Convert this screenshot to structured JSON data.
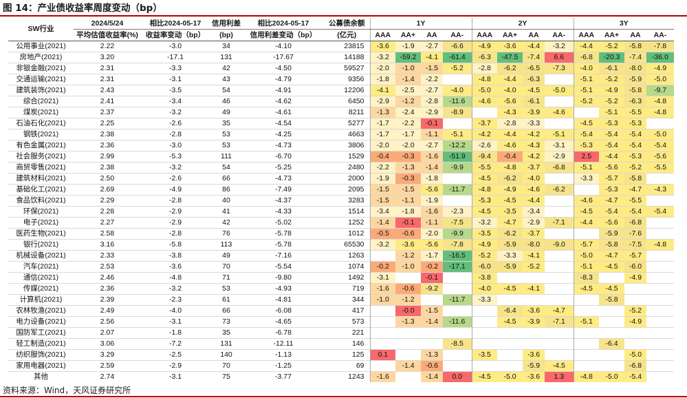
{
  "title": "图 14：产业债收益率周度变动（bp）",
  "source": "资料来源：Wind，天风证券研究所",
  "colors": {
    "red": "#f8696b",
    "orange": "#fbaa77",
    "yellow": "#ffeb84",
    "pale": "#fff2c4",
    "green": "#63be7b",
    "lightgreen": "#b6d98a"
  },
  "header": {
    "col_industry": "SW行业",
    "col_date_top": "2024/5/24",
    "col_date_bottom": "平均估值收益率(%)",
    "col_chg_top": "相比2024-05-17",
    "col_chg_bottom": "收益率变动（bp）",
    "col_spread_top": "信用利差",
    "col_spread_bottom": "(bp)",
    "col_spreadchg_top": "相比2024-05-17",
    "col_spreadchg_bottom": "信用利差变动（bp）",
    "col_bal_top": "公募债余额",
    "col_bal_bottom": "(亿元)",
    "groups": [
      "1Y",
      "2Y",
      "3Y"
    ],
    "ratings": [
      "AAA",
      "AA+",
      "AA",
      "AA-"
    ]
  },
  "rows": [
    {
      "ind": "公用事业(2021)",
      "y": "2.22",
      "c": "-3.0",
      "s": "34",
      "sc": "-4.10",
      "b": "23815",
      "v": [
        "-3.6",
        "-1.9",
        "-2.7",
        "-6.6",
        "-4.9",
        "-3.6",
        "-4.4",
        "-3.2",
        "-4.4",
        "-5.2",
        "-5.8",
        "-7.8"
      ]
    },
    {
      "ind": "房地产(2021)",
      "y": "3.20",
      "c": "-17.1",
      "s": "131",
      "sc": "-17.67",
      "b": "14188",
      "v": [
        "-3.2",
        "-59.2",
        "-4.1",
        "-61.4",
        "-6.3",
        "-47.5",
        "-7.4",
        "6.6",
        "-6.8",
        "-20.3",
        "-7.4",
        "-36.0"
      ]
    },
    {
      "ind": "非银金融(2021)",
      "y": "2.31",
      "c": "-3.3",
      "s": "42",
      "sc": "-4.50",
      "b": "59527",
      "v": [
        "-2.0",
        "-1.0",
        "-1.5",
        "-5.2",
        "-2.8",
        "-6.2",
        "-6.5",
        "-7.3",
        "-4.0",
        "-6.1",
        "-8.0",
        "-4.9"
      ]
    },
    {
      "ind": "交通运输(2021)",
      "y": "2.31",
      "c": "-3.1",
      "s": "43",
      "sc": "-4.79",
      "b": "9356",
      "v": [
        "-1.8",
        "-1.4",
        "-2.2",
        "",
        "-4.8",
        "-4.4",
        "-6.3",
        "",
        "-5.1",
        "-5.2",
        "-5.9",
        "-5.0"
      ]
    },
    {
      "ind": "建筑装饰(2021)",
      "y": "2.43",
      "c": "-3.5",
      "s": "54",
      "sc": "-4.91",
      "b": "12206",
      "v": [
        "-4.1",
        "-2.5",
        "-2.7",
        "-4.0",
        "-5.0",
        "-4.0",
        "-4.5",
        "-5.0",
        "-5.1",
        "-4.9",
        "-5.8",
        "-9.7"
      ]
    },
    {
      "ind": "综合(2021)",
      "y": "2.41",
      "c": "-3.4",
      "s": "46",
      "sc": "-4.62",
      "b": "6450",
      "v": [
        "-2.9",
        "-1.2",
        "-2.8",
        "-11.6",
        "-4.6",
        "-5.6",
        "-6.1",
        "",
        "-5.2",
        "-5.2",
        "-6.3",
        "-4.8"
      ]
    },
    {
      "ind": "煤炭(2021)",
      "y": "2.37",
      "c": "-3.2",
      "s": "49",
      "sc": "-4.61",
      "b": "8211",
      "v": [
        "-1.3",
        "-2.4",
        "-2.9",
        "-8.9",
        "",
        "-4.3",
        "-3.9",
        "-4.6",
        "",
        "-5.1",
        "-5.5",
        "-4.8"
      ]
    },
    {
      "ind": "石油石化(2021)",
      "y": "2.25",
      "c": "-2.6",
      "s": "35",
      "sc": "-4.54",
      "b": "5277",
      "v": [
        "-1.7",
        "-2.2",
        "-0.1",
        "",
        "-3.7",
        "-2.8",
        "-3.3",
        "",
        "-4.5",
        "-5.3",
        "-5.3",
        ""
      ]
    },
    {
      "ind": "钢铁(2021)",
      "y": "2.38",
      "c": "-2.8",
      "s": "53",
      "sc": "-4.25",
      "b": "4663",
      "v": [
        "-1.7",
        "-1.7",
        "-1.1",
        "-5.1",
        "-4.2",
        "-4.4",
        "-4.2",
        "-5.1",
        "-5.4",
        "-5.4",
        "-5.4",
        "-5.0"
      ]
    },
    {
      "ind": "有色金属(2021)",
      "y": "2.36",
      "c": "-3.0",
      "s": "53",
      "sc": "-4.73",
      "b": "3806",
      "v": [
        "-2.0",
        "-2.0",
        "-2.7",
        "-12.2",
        "-2.6",
        "-4.6",
        "-4.3",
        "-3.1",
        "-5.3",
        "-5.4",
        "-5.4",
        "-5.4"
      ]
    },
    {
      "ind": "社会服务(2021)",
      "y": "2.99",
      "c": "-5.3",
      "s": "111",
      "sc": "-6.70",
      "b": "1529",
      "v": [
        "-0.4",
        "-0.3",
        "-1.6",
        "-51.9",
        "-9.4",
        "-0.4",
        "-4.2",
        "-2.9",
        "2.5",
        "-4.4",
        "-5.3",
        "-5.6"
      ]
    },
    {
      "ind": "商贸零售(2021)",
      "y": "2.38",
      "c": "-3.2",
      "s": "54",
      "sc": "-5.25",
      "b": "2480",
      "v": [
        "-2.2",
        "-1.3",
        "-1.4",
        "-9.9",
        "-5.5",
        "-4.8",
        "-3.7",
        "-6.8",
        "-5.1",
        "-5.6",
        "-5.2",
        "-5.5"
      ]
    },
    {
      "ind": "建筑材料(2021)",
      "y": "2.50",
      "c": "-2.6",
      "s": "66",
      "sc": "-4.73",
      "b": "2000",
      "v": [
        "-1.9",
        "-0.3",
        "-1.8",
        "",
        "-4.5",
        "-6.2",
        "-4.0",
        "",
        "-3.3",
        "-5.7",
        "-5.8",
        ""
      ]
    },
    {
      "ind": "基础化工(2021)",
      "y": "2.69",
      "c": "-4.9",
      "s": "86",
      "sc": "-7.49",
      "b": "2095",
      "v": [
        "-1.5",
        "-1.5",
        "-5.6",
        "-11.7",
        "-4.8",
        "-4.9",
        "-4.6",
        "-6.2",
        "",
        "-5.3",
        "-4.7",
        "-4.3"
      ]
    },
    {
      "ind": "食品饮料(2021)",
      "y": "2.29",
      "c": "-2.8",
      "s": "40",
      "sc": "-4.37",
      "b": "3283",
      "v": [
        "-1.5",
        "-1.1",
        "-1.9",
        "",
        "-5.3",
        "-4.5",
        "-4.4",
        "",
        "-4.6",
        "-4.7",
        "-5.5",
        ""
      ]
    },
    {
      "ind": "环保(2021)",
      "y": "2.28",
      "c": "-2.9",
      "s": "41",
      "sc": "-4.33",
      "b": "1514",
      "v": [
        "-3.4",
        "-1.8",
        "-1.6",
        "-2.3",
        "-4.5",
        "-3.5",
        "-3.4",
        "",
        "-4.5",
        "-5.4",
        "-5.4",
        "-5.4"
      ]
    },
    {
      "ind": "电子(2021)",
      "y": "2.27",
      "c": "-2.9",
      "s": "42",
      "sc": "-5.02",
      "b": "1252",
      "v": [
        "-1.4",
        "-0.1",
        "-1.1",
        "-7.5",
        "-3.2",
        "-4.7",
        "-2.9",
        "-7.1",
        "-4.4",
        "-5.6",
        "-6.8",
        ""
      ]
    },
    {
      "ind": "医药生物(2021)",
      "y": "2.58",
      "c": "-2.8",
      "s": "76",
      "sc": "-5.78",
      "b": "1012",
      "v": [
        "-0.5",
        "-0.6",
        "-2.0",
        "-9.9",
        "-3.5",
        "-6.2",
        "-3.7",
        "",
        "",
        "-5.9",
        "-7.6",
        ""
      ]
    },
    {
      "ind": "银行(2021)",
      "y": "3.16",
      "c": "-5.8",
      "s": "113",
      "sc": "-5.78",
      "b": "65530",
      "v": [
        "-3.2",
        "-3.6",
        "-5.6",
        "-7.8",
        "-4.9",
        "-5.9",
        "-8.0",
        "-9.0",
        "-5.7",
        "-5.8",
        "-7.5",
        "-4.8"
      ]
    },
    {
      "ind": "机械设备(2021)",
      "y": "2.33",
      "c": "-3.8",
      "s": "49",
      "sc": "-7.16",
      "b": "1263",
      "v": [
        "",
        "-1.2",
        "-1.7",
        "-16.5",
        "-5.2",
        "-3.3",
        "-4.1",
        "",
        "-5.0",
        "-4.7",
        "-5.7",
        ""
      ]
    },
    {
      "ind": "汽车(2021)",
      "y": "2.53",
      "c": "-3.6",
      "s": "70",
      "sc": "-5.54",
      "b": "1074",
      "v": [
        "-0.2",
        "-1.0",
        "-0.2",
        "-17.1",
        "-6.0",
        "-5.9",
        "-5.2",
        "",
        "-5.1",
        "-4.5",
        "-6.0",
        ""
      ]
    },
    {
      "ind": "通信(2021)",
      "y": "2.46",
      "c": "-4.8",
      "s": "71",
      "sc": "-9.80",
      "b": "1492",
      "v": [
        "-3.1",
        "",
        "-0.1",
        "",
        "-3.8",
        "",
        "",
        "",
        "-8.3",
        "",
        "-4.9",
        ""
      ]
    },
    {
      "ind": "传媒(2021)",
      "y": "2.36",
      "c": "-3.2",
      "s": "53",
      "sc": "-4.93",
      "b": "719",
      "v": [
        "-1.6",
        "-0.6",
        "-9.2",
        "",
        "-4.0",
        "-4.5",
        "-4.1",
        "",
        "-4.5",
        "-4.5",
        "",
        ""
      ]
    },
    {
      "ind": "计算机(2021)",
      "y": "2.39",
      "c": "-2.3",
      "s": "61",
      "sc": "-4.81",
      "b": "344",
      "v": [
        "-1.0",
        "-1.2",
        "",
        "-11.7",
        "-3.3",
        "",
        "",
        "",
        "",
        "-5.8",
        "",
        ""
      ]
    },
    {
      "ind": "农林牧渔(2021)",
      "y": "2.49",
      "c": "-4.0",
      "s": "66",
      "sc": "-6.08",
      "b": "417",
      "v": [
        "",
        "-0.0",
        "-1.5",
        "",
        "",
        "-6.4",
        "-3.6",
        "-4.7",
        "",
        "",
        "-5.2",
        ""
      ]
    },
    {
      "ind": "电力设备(2021)",
      "y": "2.56",
      "c": "-3.1",
      "s": "73",
      "sc": "-4.65",
      "b": "573",
      "v": [
        "",
        "-1.3",
        "-1.4",
        "-11.6",
        "",
        "-4.5",
        "-3.9",
        "-7.1",
        "-5.1",
        "",
        "-4.9",
        ""
      ]
    },
    {
      "ind": "国防军工(2021)",
      "y": "2.07",
      "c": "-1.8",
      "s": "35",
      "sc": "-6.78",
      "b": "221",
      "v": [
        "",
        "",
        "",
        "",
        "",
        "",
        "",
        "",
        "",
        "",
        "",
        ""
      ]
    },
    {
      "ind": "轻工制造(2021)",
      "y": "3.06",
      "c": "-7.2",
      "s": "131",
      "sc": "-12.11",
      "b": "146",
      "v": [
        "",
        "",
        "",
        "-8.5",
        "",
        "",
        "",
        "",
        "",
        "-6.4",
        "",
        ""
      ]
    },
    {
      "ind": "纺织服饰(2021)",
      "y": "3.29",
      "c": "-2.5",
      "s": "140",
      "sc": "-1.13",
      "b": "125",
      "v": [
        "0.1",
        "",
        "-1.3",
        "",
        "-3.5",
        "",
        "-3.6",
        "",
        "",
        "",
        "-5.0",
        ""
      ]
    },
    {
      "ind": "家用电器(2021)",
      "y": "2.59",
      "c": "-2.9",
      "s": "70",
      "sc": "-1.25",
      "b": "69",
      "v": [
        "",
        "-1.4",
        "-0.6",
        "",
        "",
        "",
        "-5.9",
        "-4.5",
        "",
        "",
        "-6.8",
        ""
      ]
    },
    {
      "ind": "其他",
      "y": "2.74",
      "c": "-3.1",
      "s": "75",
      "sc": "-3.77",
      "b": "1243",
      "v": [
        "-1.6",
        "",
        "-1.4",
        "0.0",
        "-4.5",
        "-5.0",
        "-3.6",
        "1.3",
        "-4.8",
        "-5.0",
        "-5.4",
        ""
      ]
    }
  ]
}
